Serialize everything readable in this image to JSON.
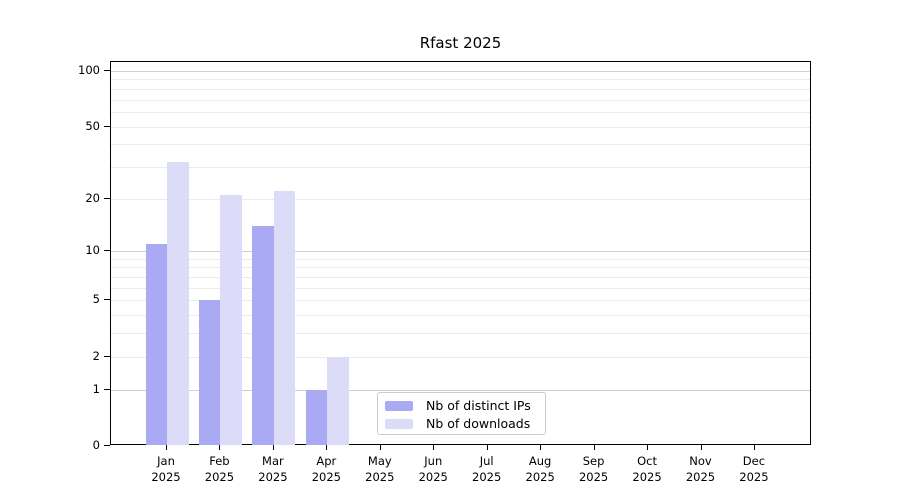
{
  "figure": {
    "background": "#ffffff"
  },
  "chart_data": {
    "type": "bar",
    "title": "Rfast 2025",
    "x_categories": [
      "Jan",
      "Feb",
      "Mar",
      "Apr",
      "May",
      "Jun",
      "Jul",
      "Aug",
      "Sep",
      "Oct",
      "Nov",
      "Dec"
    ],
    "x_year": "2025",
    "series": [
      {
        "name": "Nb of distinct IPs",
        "color": "#a9a9f4",
        "values": [
          11,
          5,
          14,
          1,
          0,
          0,
          0,
          0,
          0,
          0,
          0,
          0
        ]
      },
      {
        "name": "Nb of downloads",
        "color": "#dcdcf9",
        "values": [
          32,
          21,
          22,
          2,
          0,
          0,
          0,
          0,
          0,
          0,
          0,
          0
        ]
      }
    ],
    "y_scale": "log1p",
    "y_ticks": [
      0,
      1,
      2,
      5,
      10,
      20,
      50,
      100
    ],
    "y_major_gridlines": [
      1,
      10,
      100
    ],
    "y_minor_gridlines": [
      2,
      3,
      4,
      5,
      6,
      7,
      8,
      9,
      20,
      30,
      40,
      50,
      60,
      70,
      80,
      90
    ],
    "ylim": [
      0,
      112
    ],
    "grid": "horizontal-only",
    "legend_position": "lower-center",
    "colors": {
      "major_grid": "#cfcfcf",
      "minor_grid": "#ebebeb",
      "axis": "#000000",
      "legend_border": "#cccccc",
      "background": "#ffffff"
    }
  }
}
